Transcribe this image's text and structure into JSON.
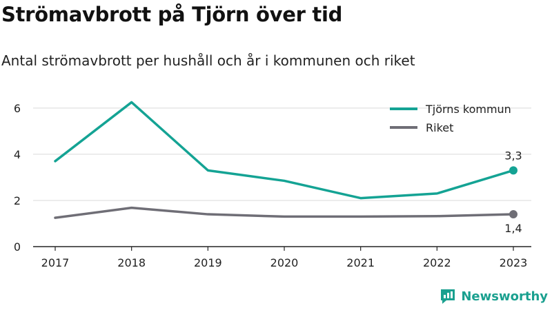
{
  "header": {
    "title": "Strömavbrott på Tjörn över tid",
    "subtitle": "Antal strömavbrott per hushåll och år i kommunen och riket"
  },
  "brand": {
    "name": "Newsworthy",
    "icon": "newsworthy-logo-icon",
    "color": "#1aa08f"
  },
  "chart_data": {
    "type": "line",
    "x": [
      "2017",
      "2018",
      "2019",
      "2020",
      "2021",
      "2022",
      "2023"
    ],
    "ylim": [
      0,
      6.8
    ],
    "yticks": [
      0,
      2,
      4,
      6
    ],
    "grid": true,
    "legend_position": "top-right",
    "series": [
      {
        "name": "Tjörns kommun",
        "color": "#14a394",
        "values": [
          3.7,
          6.25,
          3.3,
          2.85,
          2.1,
          2.3,
          3.3
        ],
        "end_label": "3,3"
      },
      {
        "name": "Riket",
        "color": "#6f6e76",
        "values": [
          1.25,
          1.68,
          1.4,
          1.3,
          1.3,
          1.32,
          1.4
        ],
        "end_label": "1,4"
      }
    ]
  }
}
